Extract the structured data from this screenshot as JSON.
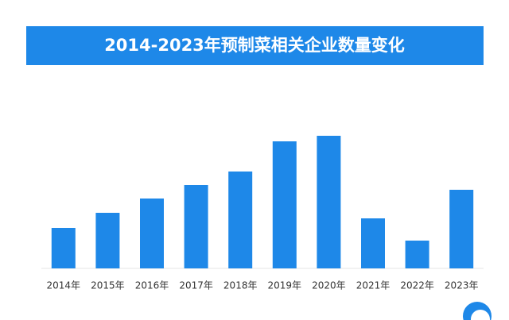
{
  "chart_data": {
    "type": "bar",
    "title": "2014-2023年预制菜相关企业数量变化",
    "categories": [
      "2014年",
      "2015年",
      "2016年",
      "2017年",
      "2018年",
      "2019年",
      "2020年",
      "2021年",
      "2022年",
      "2023年"
    ],
    "values": [
      51,
      70,
      88,
      105,
      122,
      160,
      167,
      63,
      35,
      99
    ],
    "color": "#1e88e8"
  }
}
